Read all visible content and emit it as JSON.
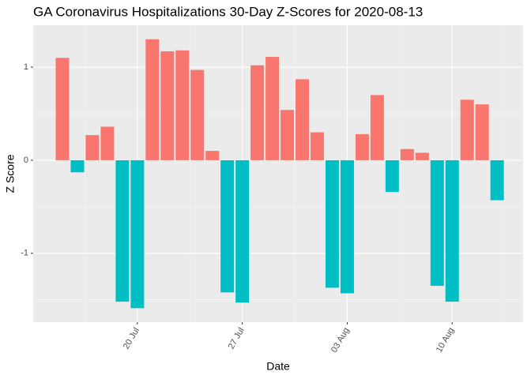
{
  "chart_data": {
    "type": "bar",
    "title": "GA Coronavirus Hospitalizations 30-Day Z-Scores for 2020-08-13",
    "x_label": "Date",
    "y_label": "Z Score",
    "categories": [
      null,
      null,
      null,
      null,
      null,
      "20 Jul",
      null,
      null,
      null,
      null,
      null,
      null,
      "27 Jul",
      null,
      null,
      null,
      null,
      null,
      null,
      "03 Aug",
      null,
      null,
      null,
      null,
      null,
      null,
      "10 Aug",
      null,
      null,
      null
    ],
    "values": [
      1.1,
      -0.13,
      0.27,
      0.36,
      -1.52,
      -1.59,
      1.3,
      1.17,
      1.18,
      0.97,
      0.1,
      -1.42,
      -1.53,
      1.02,
      1.11,
      0.54,
      0.87,
      0.3,
      -1.37,
      -1.43,
      0.28,
      0.7,
      -0.34,
      0.12,
      0.08,
      -1.35,
      -1.52,
      0.65,
      0.6,
      -0.43
    ],
    "positive_color": "#F8766D",
    "negative_color": "#00BFC4",
    "ylim": [
      -1.74,
      1.45
    ],
    "yticks": [
      -1,
      0,
      1
    ],
    "grid": true
  }
}
